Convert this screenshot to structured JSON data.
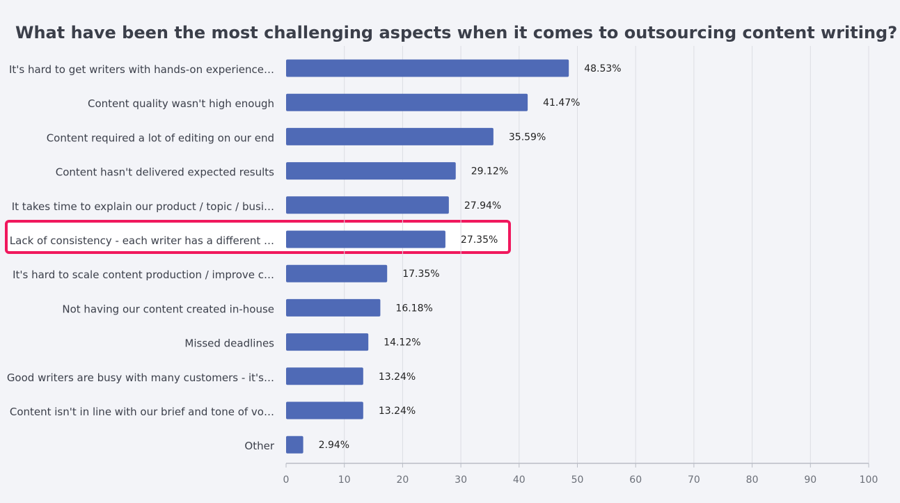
{
  "chart_data": {
    "type": "bar",
    "orientation": "horizontal",
    "title": "What have been the most challenging aspects when it comes to outsourcing content writing?",
    "categories": [
      "It's hard to get writers with hands-on experience…",
      "Content quality wasn't high enough",
      "Content required a lot of editing on our end",
      "Content hasn't delivered expected results",
      "It takes time to explain our product / topic / busi…",
      "Lack of consistency - each writer has a different …",
      "It's hard to scale content production / improve c…",
      "Not having our content created in-house",
      "Missed deadlines",
      "Good writers are busy with many customers - it's…",
      "Content isn't in line with our brief and tone of vo…",
      "Other"
    ],
    "values": [
      48.53,
      41.47,
      35.59,
      29.12,
      27.94,
      27.35,
      17.35,
      16.18,
      14.12,
      13.24,
      13.24,
      2.94
    ],
    "value_labels": [
      "48.53%",
      "41.47%",
      "35.59%",
      "29.12%",
      "27.94%",
      "27.35%",
      "17.35%",
      "16.18%",
      "14.12%",
      "13.24%",
      "13.24%",
      "2.94%"
    ],
    "xlim": [
      0,
      100
    ],
    "xticks": [
      0,
      10,
      20,
      30,
      40,
      50,
      60,
      70,
      80,
      90,
      100
    ],
    "grid": true,
    "highlighted_category_index": 5,
    "colors": {
      "bar": "#4f6ab6",
      "grid": "#dcdde3",
      "axis": "#b9bcc5",
      "highlight": "#f0185d",
      "highlight_fill": "#ffffff",
      "background": "#f3f4f8"
    }
  }
}
